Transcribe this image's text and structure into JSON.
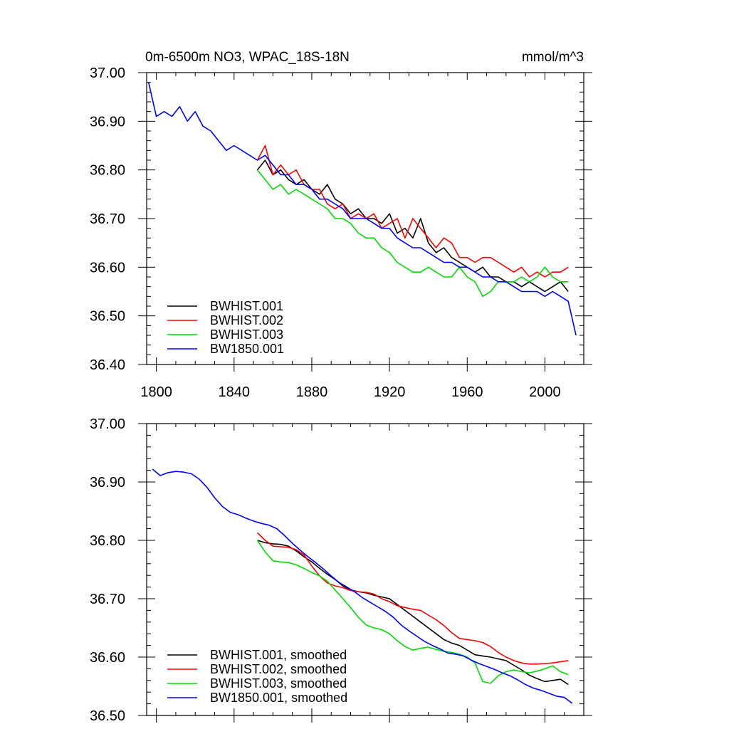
{
  "chart_data": [
    {
      "type": "line",
      "title": "0m-6500m NO3, WPAC_18S-18N",
      "units": "mmol/m^3",
      "xlim": [
        1795,
        2020
      ],
      "ylim": [
        36.4,
        37.0
      ],
      "yticks": [
        "36.40",
        "36.50",
        "36.60",
        "36.70",
        "36.80",
        "36.90",
        "37.00"
      ],
      "xticks": [
        "1800",
        "1840",
        "1880",
        "1920",
        "1960",
        "2000"
      ],
      "legend_position": "bottom-left",
      "series": [
        {
          "name": "BWHIST.001",
          "color": "#000000",
          "x": [
            1852,
            1856,
            1860,
            1864,
            1868,
            1872,
            1876,
            1880,
            1884,
            1888,
            1892,
            1896,
            1900,
            1904,
            1908,
            1912,
            1916,
            1920,
            1924,
            1928,
            1932,
            1936,
            1940,
            1944,
            1948,
            1952,
            1956,
            1960,
            1964,
            1968,
            1972,
            1976,
            1980,
            1984,
            1988,
            1992,
            1996,
            2000,
            2004,
            2008,
            2012
          ],
          "y": [
            36.8,
            36.82,
            36.79,
            36.8,
            36.78,
            36.77,
            36.78,
            36.76,
            36.75,
            36.77,
            36.74,
            36.73,
            36.71,
            36.72,
            36.7,
            36.7,
            36.69,
            36.71,
            36.67,
            36.68,
            36.66,
            36.7,
            36.65,
            36.63,
            36.64,
            36.62,
            36.61,
            36.6,
            36.59,
            36.6,
            36.58,
            36.58,
            36.57,
            36.57,
            36.56,
            36.57,
            36.56,
            36.55,
            36.56,
            36.57,
            36.55
          ]
        },
        {
          "name": "BWHIST.002",
          "color": "#ff0000",
          "x": [
            1852,
            1856,
            1860,
            1864,
            1868,
            1872,
            1876,
            1880,
            1884,
            1888,
            1892,
            1896,
            1900,
            1904,
            1908,
            1912,
            1916,
            1920,
            1924,
            1928,
            1932,
            1936,
            1940,
            1944,
            1948,
            1952,
            1956,
            1960,
            1964,
            1968,
            1972,
            1976,
            1980,
            1984,
            1988,
            1992,
            1996,
            2000,
            2004,
            2008,
            2012
          ],
          "y": [
            36.82,
            36.85,
            36.79,
            36.81,
            36.79,
            36.8,
            36.77,
            36.76,
            36.76,
            36.73,
            36.72,
            36.73,
            36.7,
            36.71,
            36.7,
            36.71,
            36.68,
            36.69,
            36.7,
            36.66,
            36.7,
            36.68,
            36.66,
            36.64,
            36.66,
            36.65,
            36.62,
            36.62,
            36.61,
            36.62,
            36.62,
            36.61,
            36.6,
            36.59,
            36.6,
            36.58,
            36.59,
            36.58,
            36.59,
            36.59,
            36.6
          ]
        },
        {
          "name": "BWHIST.003",
          "color": "#00dd00",
          "x": [
            1852,
            1856,
            1860,
            1864,
            1868,
            1872,
            1876,
            1880,
            1884,
            1888,
            1892,
            1896,
            1900,
            1904,
            1908,
            1912,
            1916,
            1920,
            1924,
            1928,
            1932,
            1936,
            1940,
            1944,
            1948,
            1952,
            1956,
            1960,
            1964,
            1968,
            1972,
            1976,
            1980,
            1984,
            1988,
            1992,
            1996,
            2000,
            2004,
            2008,
            2012
          ],
          "y": [
            36.8,
            36.78,
            36.76,
            36.77,
            36.75,
            36.76,
            36.75,
            36.74,
            36.73,
            36.72,
            36.7,
            36.7,
            36.69,
            36.67,
            36.66,
            36.66,
            36.64,
            36.63,
            36.61,
            36.6,
            36.59,
            36.59,
            36.6,
            36.59,
            36.58,
            36.58,
            36.6,
            36.58,
            36.57,
            36.54,
            36.55,
            36.57,
            36.57,
            36.57,
            36.58,
            36.57,
            36.58,
            36.6,
            36.58,
            36.57,
            36.57
          ]
        },
        {
          "name": "BW1850.001",
          "color": "#0000ff",
          "x": [
            1796,
            1800,
            1804,
            1808,
            1812,
            1816,
            1820,
            1824,
            1828,
            1832,
            1836,
            1840,
            1844,
            1848,
            1852,
            1856,
            1860,
            1864,
            1868,
            1872,
            1876,
            1880,
            1884,
            1888,
            1892,
            1896,
            1900,
            1904,
            1908,
            1912,
            1916,
            1920,
            1924,
            1928,
            1932,
            1936,
            1940,
            1944,
            1948,
            1952,
            1956,
            1960,
            1964,
            1968,
            1972,
            1976,
            1980,
            1984,
            1988,
            1992,
            1996,
            2000,
            2004,
            2008,
            2012,
            2016
          ],
          "y": [
            36.98,
            36.91,
            36.92,
            36.91,
            36.93,
            36.9,
            36.92,
            36.89,
            36.88,
            36.86,
            36.84,
            36.85,
            36.84,
            36.83,
            36.82,
            36.83,
            36.81,
            36.79,
            36.79,
            36.77,
            36.77,
            36.76,
            36.74,
            36.74,
            36.73,
            36.72,
            36.7,
            36.7,
            36.7,
            36.69,
            36.68,
            36.68,
            36.66,
            36.65,
            36.64,
            36.64,
            36.63,
            36.62,
            36.61,
            36.61,
            36.6,
            36.6,
            36.59,
            36.58,
            36.58,
            36.57,
            36.57,
            36.56,
            36.55,
            36.55,
            36.55,
            36.54,
            36.55,
            36.54,
            36.53,
            36.46
          ]
        }
      ]
    },
    {
      "type": "line",
      "xlim": [
        1795,
        2020
      ],
      "ylim": [
        36.5,
        37.0
      ],
      "yticks": [
        "36.50",
        "36.60",
        "36.70",
        "36.80",
        "36.90",
        "37.00"
      ],
      "legend_position": "bottom-left",
      "series": [
        {
          "name": "BWHIST.001, smoothed",
          "color": "#000000",
          "x": [
            1852,
            1856,
            1860,
            1864,
            1868,
            1872,
            1876,
            1880,
            1884,
            1888,
            1892,
            1896,
            1900,
            1904,
            1908,
            1912,
            1916,
            1920,
            1924,
            1928,
            1932,
            1936,
            1940,
            1944,
            1948,
            1952,
            1956,
            1960,
            1964,
            1968,
            1972,
            1976,
            1980,
            1984,
            1988,
            1992,
            1996,
            2000,
            2004,
            2008,
            2012
          ],
          "y": [
            36.8,
            36.796,
            36.794,
            36.793,
            36.79,
            36.782,
            36.772,
            36.763,
            36.752,
            36.742,
            36.733,
            36.722,
            36.715,
            36.712,
            36.71,
            36.706,
            36.703,
            36.7,
            36.69,
            36.68,
            36.67,
            36.66,
            36.65,
            36.64,
            36.63,
            36.624,
            36.62,
            36.612,
            36.604,
            36.602,
            36.6,
            36.597,
            36.594,
            36.586,
            36.578,
            36.569,
            36.563,
            36.558,
            36.56,
            36.562,
            36.553
          ]
        },
        {
          "name": "BWHIST.002, smoothed",
          "color": "#ff0000",
          "x": [
            1852,
            1856,
            1860,
            1864,
            1868,
            1872,
            1876,
            1880,
            1884,
            1888,
            1892,
            1896,
            1900,
            1904,
            1908,
            1912,
            1916,
            1920,
            1924,
            1928,
            1932,
            1936,
            1940,
            1944,
            1948,
            1952,
            1956,
            1960,
            1964,
            1968,
            1972,
            1976,
            1980,
            1984,
            1988,
            1992,
            1996,
            2000,
            2004,
            2008,
            2012
          ],
          "y": [
            36.813,
            36.8,
            36.79,
            36.789,
            36.788,
            36.784,
            36.775,
            36.756,
            36.739,
            36.727,
            36.722,
            36.719,
            36.714,
            36.712,
            36.711,
            36.708,
            36.7,
            36.695,
            36.688,
            36.685,
            36.682,
            36.68,
            36.672,
            36.664,
            36.654,
            36.642,
            36.632,
            36.63,
            36.628,
            36.625,
            36.618,
            36.608,
            36.6,
            36.594,
            36.59,
            36.588,
            36.588,
            36.589,
            36.59,
            36.592,
            36.594
          ]
        },
        {
          "name": "BWHIST.003, smoothed",
          "color": "#00dd00",
          "x": [
            1852,
            1856,
            1860,
            1864,
            1868,
            1872,
            1876,
            1880,
            1884,
            1888,
            1892,
            1896,
            1900,
            1904,
            1908,
            1912,
            1916,
            1920,
            1924,
            1928,
            1932,
            1936,
            1940,
            1944,
            1948,
            1952,
            1956,
            1960,
            1964,
            1968,
            1972,
            1976,
            1980,
            1984,
            1988,
            1992,
            1996,
            2000,
            2004,
            2008,
            2012
          ],
          "y": [
            36.8,
            36.78,
            36.765,
            36.763,
            36.762,
            36.758,
            36.752,
            36.745,
            36.739,
            36.73,
            36.715,
            36.7,
            36.685,
            36.668,
            36.655,
            36.65,
            36.647,
            36.64,
            36.628,
            36.618,
            36.612,
            36.615,
            36.617,
            36.613,
            36.61,
            36.608,
            36.605,
            36.6,
            36.59,
            36.558,
            36.555,
            36.568,
            36.575,
            36.578,
            36.575,
            36.573,
            36.576,
            36.58,
            36.585,
            36.575,
            36.57
          ]
        },
        {
          "name": "BW1850.001, smoothed",
          "color": "#0000ff",
          "x": [
            1798,
            1802,
            1806,
            1810,
            1814,
            1818,
            1822,
            1826,
            1830,
            1834,
            1838,
            1842,
            1846,
            1850,
            1854,
            1858,
            1862,
            1866,
            1870,
            1874,
            1878,
            1882,
            1886,
            1890,
            1894,
            1898,
            1902,
            1906,
            1910,
            1914,
            1918,
            1922,
            1926,
            1930,
            1934,
            1938,
            1942,
            1946,
            1950,
            1954,
            1958,
            1962,
            1966,
            1970,
            1974,
            1978,
            1982,
            1986,
            1990,
            1994,
            1998,
            2002,
            2006,
            2010,
            2014
          ],
          "y": [
            36.922,
            36.911,
            36.916,
            36.918,
            36.917,
            36.914,
            36.905,
            36.891,
            36.873,
            36.858,
            36.848,
            36.844,
            36.838,
            36.833,
            36.829,
            36.826,
            36.82,
            36.808,
            36.795,
            36.783,
            36.772,
            36.762,
            36.751,
            36.739,
            36.728,
            36.72,
            36.712,
            36.702,
            36.694,
            36.686,
            36.678,
            36.668,
            36.655,
            36.645,
            36.636,
            36.627,
            36.62,
            36.614,
            36.607,
            36.605,
            36.602,
            36.595,
            36.589,
            36.584,
            36.579,
            36.573,
            36.568,
            36.561,
            36.553,
            36.547,
            36.543,
            36.538,
            36.533,
            36.531,
            36.521
          ]
        }
      ]
    }
  ]
}
